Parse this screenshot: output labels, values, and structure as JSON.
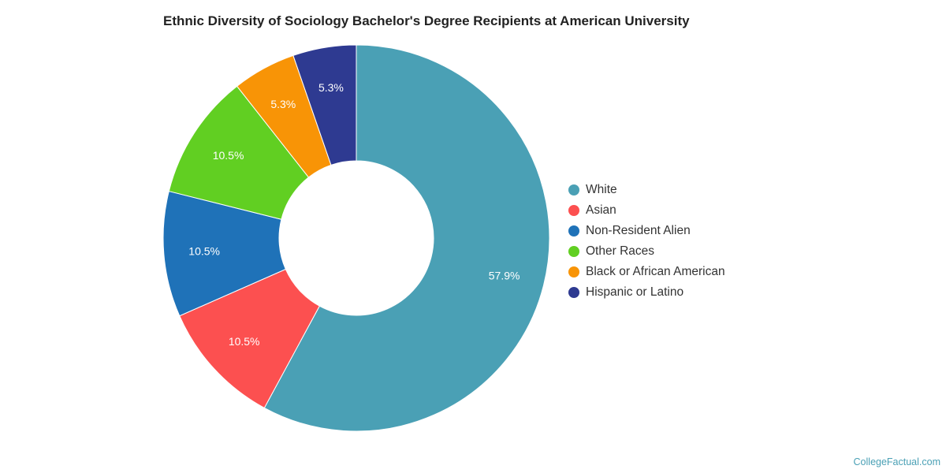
{
  "chart_data": {
    "type": "pie",
    "donut": true,
    "title": "Ethnic Diversity of Sociology Bachelor's Degree Recipients at American University",
    "legend_position": "right",
    "slices": [
      {
        "label": "White",
        "value": 57.9,
        "display": "57.9%",
        "color": "#4aa0b5"
      },
      {
        "label": "Asian",
        "value": 10.5,
        "display": "10.5%",
        "color": "#fc5050"
      },
      {
        "label": "Non-Resident Alien",
        "value": 10.5,
        "display": "10.5%",
        "color": "#1f72b8"
      },
      {
        "label": "Other Races",
        "value": 10.5,
        "display": "10.5%",
        "color": "#61cf22"
      },
      {
        "label": "Black or African American",
        "value": 5.3,
        "display": "5.3%",
        "color": "#f89406"
      },
      {
        "label": "Hispanic or Latino",
        "value": 5.3,
        "display": "5.3%",
        "color": "#2e3a91"
      }
    ]
  },
  "credit": "CollegeFactual.com"
}
